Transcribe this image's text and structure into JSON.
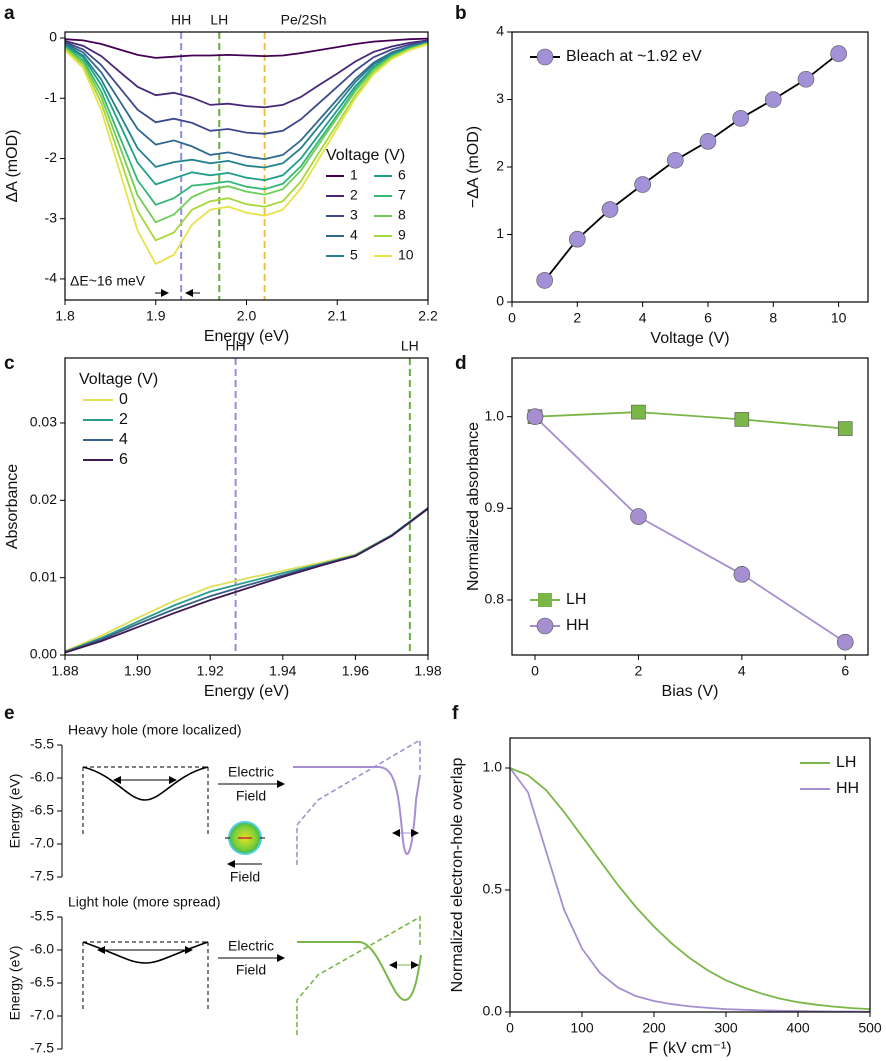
{
  "chart_data": [
    {
      "panel": "a",
      "type": "line",
      "x": [
        1.8,
        1.82,
        1.84,
        1.86,
        1.88,
        1.9,
        1.92,
        1.94,
        1.96,
        1.98,
        2.0,
        2.02,
        2.04,
        2.06,
        2.08,
        2.1,
        2.12,
        2.14,
        2.16,
        2.18,
        2.2
      ],
      "series": [
        {
          "name": "1",
          "color": "#440154",
          "values": [
            -0.02,
            -0.04,
            -0.1,
            -0.19,
            -0.28,
            -0.33,
            -0.31,
            -0.29,
            -0.29,
            -0.28,
            -0.29,
            -0.3,
            -0.29,
            -0.25,
            -0.2,
            -0.15,
            -0.1,
            -0.06,
            -0.04,
            -0.02,
            -0.01
          ]
        },
        {
          "name": "2",
          "color": "#482878",
          "values": [
            -0.05,
            -0.13,
            -0.3,
            -0.56,
            -0.81,
            -0.95,
            -0.91,
            -0.99,
            -1.11,
            -1.09,
            -1.13,
            -1.15,
            -1.11,
            -0.98,
            -0.78,
            -0.59,
            -0.39,
            -0.23,
            -0.14,
            -0.08,
            -0.04
          ]
        },
        {
          "name": "3",
          "color": "#3e4989",
          "values": [
            -0.07,
            -0.19,
            -0.45,
            -0.82,
            -1.19,
            -1.4,
            -1.34,
            -1.41,
            -1.54,
            -1.51,
            -1.57,
            -1.59,
            -1.54,
            -1.35,
            -1.08,
            -0.81,
            -0.54,
            -0.32,
            -0.19,
            -0.11,
            -0.05
          ]
        },
        {
          "name": "4",
          "color": "#31688e",
          "values": [
            -0.09,
            -0.24,
            -0.57,
            -1.04,
            -1.51,
            -1.77,
            -1.7,
            -1.8,
            -1.94,
            -1.9,
            -1.97,
            -2.01,
            -1.94,
            -1.7,
            -1.36,
            -1.02,
            -0.68,
            -0.41,
            -0.24,
            -0.14,
            -0.07
          ]
        },
        {
          "name": "5",
          "color": "#26828e",
          "values": [
            -0.11,
            -0.29,
            -0.69,
            -1.26,
            -1.83,
            -2.14,
            -2.06,
            -2.02,
            -2.08,
            -2.04,
            -2.12,
            -2.15,
            -2.08,
            -1.83,
            -1.46,
            -1.1,
            -0.73,
            -0.44,
            -0.26,
            -0.15,
            -0.07
          ]
        },
        {
          "name": "6",
          "color": "#1f9e89",
          "values": [
            -0.13,
            -0.32,
            -0.78,
            -1.42,
            -2.07,
            -2.43,
            -2.33,
            -2.23,
            -2.28,
            -2.24,
            -2.32,
            -2.36,
            -2.28,
            -2.0,
            -1.6,
            -1.2,
            -0.8,
            -0.48,
            -0.28,
            -0.16,
            -0.08
          ]
        },
        {
          "name": "7",
          "color": "#35b779",
          "values": [
            -0.15,
            -0.37,
            -0.89,
            -1.63,
            -2.36,
            -2.77,
            -2.66,
            -2.45,
            -2.42,
            -2.38,
            -2.47,
            -2.51,
            -2.42,
            -2.13,
            -1.7,
            -1.28,
            -0.85,
            -0.51,
            -0.3,
            -0.17,
            -0.09
          ]
        },
        {
          "name": "8",
          "color": "#6ece58",
          "values": [
            -0.16,
            -0.41,
            -0.98,
            -1.79,
            -2.61,
            -3.06,
            -2.93,
            -2.64,
            -2.51,
            -2.46,
            -2.55,
            -2.6,
            -2.51,
            -2.2,
            -1.76,
            -1.32,
            -0.88,
            -0.53,
            -0.31,
            -0.18,
            -0.09
          ]
        },
        {
          "name": "9",
          "color": "#a6d83a",
          "values": [
            -0.18,
            -0.45,
            -1.08,
            -1.97,
            -2.87,
            -3.36,
            -3.23,
            -2.85,
            -2.71,
            -2.66,
            -2.76,
            -2.8,
            -2.71,
            -2.38,
            -1.9,
            -1.43,
            -0.95,
            -0.57,
            -0.33,
            -0.19,
            -0.1
          ]
        },
        {
          "name": "10",
          "color": "#e6e34a",
          "values": [
            -0.2,
            -0.5,
            -1.2,
            -2.2,
            -3.2,
            -3.75,
            -3.6,
            -3.1,
            -2.85,
            -2.8,
            -2.9,
            -2.95,
            -2.85,
            -2.5,
            -2.0,
            -1.5,
            -1.0,
            -0.6,
            -0.35,
            -0.2,
            -0.1
          ]
        }
      ],
      "xlim": [
        1.8,
        2.2
      ],
      "ylim": [
        -4.35,
        0.1
      ],
      "xticks": [
        1.8,
        1.9,
        {
          "value": 2,
          "label": "2.0"
        },
        2.1,
        2.2
      ],
      "yticks": [
        0,
        -1,
        -2,
        -3,
        -4
      ],
      "xlabel": "Energy (eV)",
      "ylabel": "ΔA (mOD)",
      "legend_title": "Voltage (V)",
      "legend": "lower right",
      "vlines": [
        {
          "x": 1.928,
          "label": "HH",
          "color": "#8f8fe0"
        },
        {
          "x": 1.97,
          "label": "LH",
          "color": "#6aab3a"
        },
        {
          "x": 2.02,
          "label": "Pe/2Sh",
          "color": "#f2c040"
        }
      ],
      "annotation": "ΔE~16 meV"
    },
    {
      "panel": "b",
      "type": "line",
      "x": [
        1,
        2,
        3,
        4,
        5,
        6,
        7,
        8,
        9,
        10
      ],
      "series": [
        {
          "name": "Bleach at ~1.92 eV",
          "color": "#a391d8",
          "line_color": "#000000",
          "marker": "circle",
          "values": [
            0.32,
            0.93,
            1.37,
            1.74,
            2.1,
            2.38,
            2.72,
            3.0,
            3.3,
            3.68
          ]
        }
      ],
      "xlim": [
        0,
        10.9
      ],
      "ylim": [
        0,
        4
      ],
      "xticks": [
        0,
        2,
        4,
        6,
        8,
        10
      ],
      "yticks": [
        0,
        1,
        2,
        3,
        4
      ],
      "xlabel": "Voltage (V)",
      "ylabel": "−ΔA (mOD)",
      "legend": "upper left"
    },
    {
      "panel": "c",
      "type": "line",
      "x": [
        1.88,
        1.89,
        1.9,
        1.91,
        1.92,
        1.93,
        1.94,
        1.95,
        1.96,
        1.97,
        1.98
      ],
      "series": [
        {
          "name": "0",
          "color": "#dfe055",
          "values": [
            0.0005,
            0.0025,
            0.0048,
            0.007,
            0.0088,
            0.0099,
            0.0109,
            0.0119,
            0.013,
            0.0155,
            0.019
          ]
        },
        {
          "name": "2",
          "color": "#2a9d8f",
          "values": [
            0.0004,
            0.0022,
            0.0043,
            0.0064,
            0.0082,
            0.0094,
            0.0106,
            0.0117,
            0.0129,
            0.0155,
            0.019
          ]
        },
        {
          "name": "4",
          "color": "#3b5d8c",
          "values": [
            0.0004,
            0.002,
            0.004,
            0.0059,
            0.0076,
            0.009,
            0.0103,
            0.0116,
            0.0128,
            0.0154,
            0.019
          ]
        },
        {
          "name": "6",
          "color": "#3d1a4f",
          "values": [
            0.0003,
            0.0018,
            0.0036,
            0.0054,
            0.0071,
            0.0086,
            0.0101,
            0.0115,
            0.0128,
            0.0154,
            0.0189
          ]
        }
      ],
      "xlim": [
        1.88,
        1.98
      ],
      "ylim": [
        0,
        0.0384
      ],
      "xticks": [
        1.88,
        {
          "value": 1.9,
          "label": "1.90"
        },
        1.92,
        1.94,
        1.96,
        1.98
      ],
      "yticks": [
        {
          "value": 0,
          "label": "0.00"
        },
        0.01,
        0.02,
        0.03
      ],
      "xlabel": "Energy (eV)",
      "ylabel": "Absorbance",
      "legend_title": "Voltage (V)",
      "legend": "upper left",
      "vlines": [
        {
          "x": 1.927,
          "label": "HH",
          "color": "#8f8fe0"
        },
        {
          "x": 1.975,
          "label": "LH",
          "color": "#6aab3a"
        }
      ]
    },
    {
      "panel": "d",
      "type": "line",
      "x": [
        0,
        2,
        4,
        6
      ],
      "series": [
        {
          "name": "LH",
          "color": "#7ab648",
          "marker": "square",
          "values": [
            1.0,
            1.005,
            0.997,
            0.987
          ]
        },
        {
          "name": "HH",
          "color": "#a68fd0",
          "marker": "circle",
          "values": [
            1.0,
            0.891,
            0.828,
            0.754
          ]
        }
      ],
      "xlim": [
        -0.445,
        6.44
      ],
      "ylim": [
        0.74,
        1.064
      ],
      "xticks": [
        0,
        2,
        4,
        6
      ],
      "yticks": [
        0.8,
        0.9,
        {
          "value": 1,
          "label": "1.0"
        }
      ],
      "xlabel": "Bias (V)",
      "ylabel": "Normalized absorbance",
      "legend": "lower left"
    },
    {
      "panel": "f",
      "type": "line",
      "x": [
        0,
        25,
        50,
        75,
        100,
        125,
        150,
        175,
        200,
        225,
        250,
        275,
        300,
        325,
        350,
        375,
        400,
        425,
        450,
        475,
        500
      ],
      "series": [
        {
          "name": "LH",
          "color": "#7ab648",
          "values": [
            1.0,
            0.97,
            0.91,
            0.82,
            0.72,
            0.62,
            0.52,
            0.43,
            0.35,
            0.28,
            0.22,
            0.17,
            0.13,
            0.1,
            0.075,
            0.055,
            0.04,
            0.03,
            0.022,
            0.016,
            0.012
          ]
        },
        {
          "name": "HH",
          "color": "#a68fd0",
          "values": [
            1.0,
            0.9,
            0.66,
            0.42,
            0.26,
            0.16,
            0.1,
            0.065,
            0.045,
            0.032,
            0.023,
            0.017,
            0.012,
            0.009,
            0.007,
            0.005,
            0.004,
            0.003,
            0.002,
            0.002,
            0.001
          ]
        }
      ],
      "xlim": [
        0,
        500
      ],
      "ylim": [
        0,
        1.123
      ],
      "xticks": [
        0,
        100,
        200,
        300,
        400,
        500
      ],
      "yticks": [
        {
          "value": 0,
          "label": "0.0"
        },
        0.5,
        {
          "value": 1,
          "label": "1.0"
        }
      ],
      "xlabel": "F (kV cm⁻¹)",
      "ylabel": "Normalized electron-hole overlap",
      "legend": "upper right"
    }
  ],
  "diagram": {
    "panel": "e",
    "axis_label": "Energy (eV)",
    "ticks": [
      "-5.5",
      "-6.0",
      "-6.5",
      "-7.0",
      "-7.5"
    ],
    "heavy": {
      "title": "Heavy hole (more localized)",
      "arrow_top": "Electric",
      "arrow_bottom": "Field",
      "exciton_label": "Field"
    },
    "light": {
      "title": "Light hole (more spread)",
      "arrow_top": "Electric",
      "arrow_bottom": "Field"
    }
  }
}
